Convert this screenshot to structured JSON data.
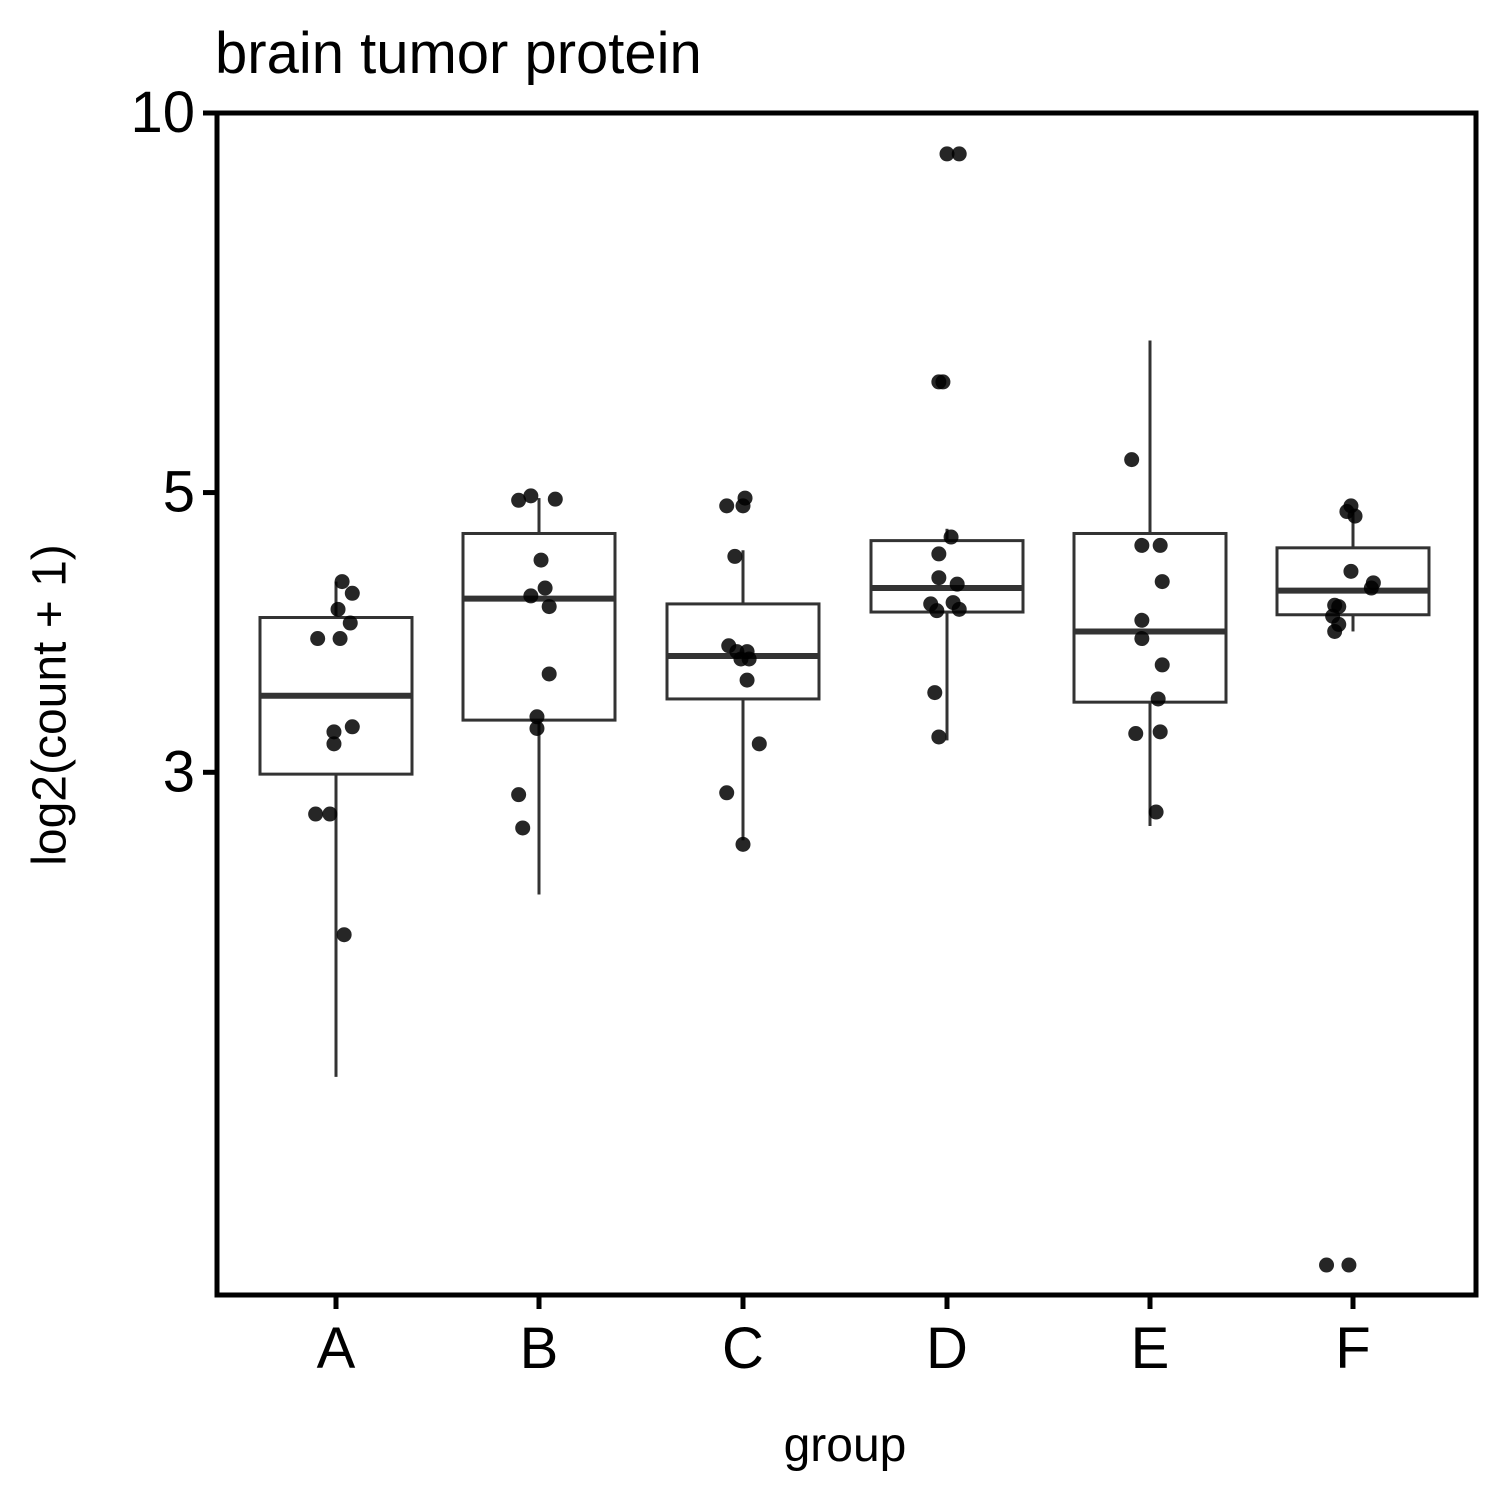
{
  "chart_data": {
    "type": "boxplot",
    "title": "brain tumor protein",
    "xlabel": "group",
    "ylabel": "log2(count + 1)",
    "y_scale": "log",
    "ylim": [
      1.155,
      10
    ],
    "y_ticks": [
      3,
      5,
      10
    ],
    "grid": false,
    "legend": "none",
    "categories": [
      "A",
      "B",
      "C",
      "D",
      "E",
      "F"
    ],
    "boxes": [
      {
        "group": "A",
        "whisker_low": 1.72,
        "q1": 2.99,
        "median": 3.45,
        "q3": 3.98,
        "whisker_high": 4.25
      },
      {
        "group": "B",
        "whisker_low": 2.4,
        "q1": 3.3,
        "median": 4.12,
        "q3": 4.64,
        "whisker_high": 4.95
      },
      {
        "group": "C",
        "whisker_low": 2.65,
        "q1": 3.43,
        "median": 3.71,
        "q3": 4.08,
        "whisker_high": 4.5
      },
      {
        "group": "D",
        "whisker_low": 3.18,
        "q1": 4.02,
        "median": 4.2,
        "q3": 4.58,
        "whisker_high": 4.68
      },
      {
        "group": "E",
        "whisker_low": 2.72,
        "q1": 3.41,
        "median": 3.88,
        "q3": 4.64,
        "whisker_high": 6.6
      },
      {
        "group": "F",
        "whisker_low": 3.88,
        "q1": 4.0,
        "median": 4.18,
        "q3": 4.52,
        "whisker_high": 4.85
      }
    ],
    "points": [
      {
        "group": "A",
        "jitter": 0.03,
        "y": 4.25
      },
      {
        "group": "A",
        "jitter": 0.08,
        "y": 4.16
      },
      {
        "group": "A",
        "jitter": 0.01,
        "y": 4.04
      },
      {
        "group": "A",
        "jitter": 0.07,
        "y": 3.94
      },
      {
        "group": "A",
        "jitter": -0.09,
        "y": 3.83
      },
      {
        "group": "A",
        "jitter": 0.02,
        "y": 3.83
      },
      {
        "group": "A",
        "jitter": 0.08,
        "y": 3.26
      },
      {
        "group": "A",
        "jitter": -0.01,
        "y": 3.23
      },
      {
        "group": "A",
        "jitter": -0.01,
        "y": 3.16
      },
      {
        "group": "A",
        "jitter": -0.1,
        "y": 2.78
      },
      {
        "group": "A",
        "jitter": -0.03,
        "y": 2.78
      },
      {
        "group": "A",
        "jitter": 0.04,
        "y": 2.23
      },
      {
        "group": "B",
        "jitter": -0.1,
        "y": 4.93
      },
      {
        "group": "B",
        "jitter": -0.04,
        "y": 4.97
      },
      {
        "group": "B",
        "jitter": 0.08,
        "y": 4.94
      },
      {
        "group": "B",
        "jitter": 0.01,
        "y": 4.42
      },
      {
        "group": "B",
        "jitter": 0.03,
        "y": 4.2
      },
      {
        "group": "B",
        "jitter": -0.04,
        "y": 4.14
      },
      {
        "group": "B",
        "jitter": 0.05,
        "y": 4.06
      },
      {
        "group": "B",
        "jitter": 0.05,
        "y": 3.59
      },
      {
        "group": "B",
        "jitter": -0.01,
        "y": 3.32
      },
      {
        "group": "B",
        "jitter": -0.01,
        "y": 3.25
      },
      {
        "group": "B",
        "jitter": -0.1,
        "y": 2.88
      },
      {
        "group": "B",
        "jitter": -0.08,
        "y": 2.71
      },
      {
        "group": "C",
        "jitter": 0.01,
        "y": 4.95
      },
      {
        "group": "C",
        "jitter": -0.08,
        "y": 4.88
      },
      {
        "group": "C",
        "jitter": 0.0,
        "y": 4.88
      },
      {
        "group": "C",
        "jitter": -0.04,
        "y": 4.45
      },
      {
        "group": "C",
        "jitter": -0.07,
        "y": 3.78
      },
      {
        "group": "C",
        "jitter": -0.03,
        "y": 3.74
      },
      {
        "group": "C",
        "jitter": 0.02,
        "y": 3.74
      },
      {
        "group": "C",
        "jitter": -0.01,
        "y": 3.69
      },
      {
        "group": "C",
        "jitter": 0.03,
        "y": 3.69
      },
      {
        "group": "C",
        "jitter": 0.02,
        "y": 3.55
      },
      {
        "group": "C",
        "jitter": 0.08,
        "y": 3.16
      },
      {
        "group": "C",
        "jitter": -0.08,
        "y": 2.89
      },
      {
        "group": "C",
        "jitter": -0.0,
        "y": 2.63
      },
      {
        "group": "D",
        "jitter": 0.0,
        "y": 9.28
      },
      {
        "group": "D",
        "jitter": 0.06,
        "y": 9.28
      },
      {
        "group": "D",
        "jitter": -0.04,
        "y": 6.12
      },
      {
        "group": "D",
        "jitter": -0.02,
        "y": 6.12
      },
      {
        "group": "D",
        "jitter": 0.02,
        "y": 4.61
      },
      {
        "group": "D",
        "jitter": -0.04,
        "y": 4.47
      },
      {
        "group": "D",
        "jitter": -0.04,
        "y": 4.28
      },
      {
        "group": "D",
        "jitter": 0.05,
        "y": 4.23
      },
      {
        "group": "D",
        "jitter": 0.03,
        "y": 4.09
      },
      {
        "group": "D",
        "jitter": -0.08,
        "y": 4.08
      },
      {
        "group": "D",
        "jitter": -0.05,
        "y": 4.03
      },
      {
        "group": "D",
        "jitter": 0.06,
        "y": 4.04
      },
      {
        "group": "D",
        "jitter": -0.06,
        "y": 3.47
      },
      {
        "group": "D",
        "jitter": -0.04,
        "y": 3.2
      },
      {
        "group": "E",
        "jitter": -0.09,
        "y": 5.31
      },
      {
        "group": "E",
        "jitter": -0.04,
        "y": 4.54
      },
      {
        "group": "E",
        "jitter": 0.05,
        "y": 4.54
      },
      {
        "group": "E",
        "jitter": 0.06,
        "y": 4.25
      },
      {
        "group": "E",
        "jitter": -0.04,
        "y": 3.96
      },
      {
        "group": "E",
        "jitter": -0.04,
        "y": 3.83
      },
      {
        "group": "E",
        "jitter": 0.06,
        "y": 3.65
      },
      {
        "group": "E",
        "jitter": 0.04,
        "y": 3.43
      },
      {
        "group": "E",
        "jitter": -0.07,
        "y": 3.22
      },
      {
        "group": "E",
        "jitter": 0.05,
        "y": 3.23
      },
      {
        "group": "E",
        "jitter": 0.03,
        "y": 2.79
      },
      {
        "group": "F",
        "jitter": -0.01,
        "y": 4.88
      },
      {
        "group": "F",
        "jitter": -0.03,
        "y": 4.83
      },
      {
        "group": "F",
        "jitter": 0.01,
        "y": 4.79
      },
      {
        "group": "F",
        "jitter": -0.01,
        "y": 4.33
      },
      {
        "group": "F",
        "jitter": 0.1,
        "y": 4.24
      },
      {
        "group": "F",
        "jitter": 0.09,
        "y": 4.2
      },
      {
        "group": "F",
        "jitter": -0.09,
        "y": 4.07
      },
      {
        "group": "F",
        "jitter": -0.07,
        "y": 4.06
      },
      {
        "group": "F",
        "jitter": -0.1,
        "y": 3.99
      },
      {
        "group": "F",
        "jitter": -0.07,
        "y": 3.93
      },
      {
        "group": "F",
        "jitter": -0.09,
        "y": 3.88
      },
      {
        "group": "F",
        "jitter": -0.13,
        "y": 1.22
      },
      {
        "group": "F",
        "jitter": -0.02,
        "y": 1.22
      }
    ],
    "colors": {
      "points": "#000000",
      "box_stroke": "#333333",
      "axis": "#000000"
    }
  }
}
